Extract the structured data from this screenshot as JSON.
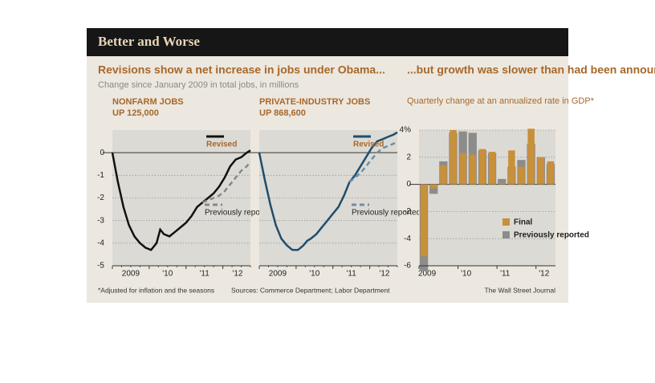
{
  "page": {
    "title": "Better and Worse",
    "headline_left": "Revisions show a net increase in jobs under Obama...",
    "subtitle_left": "Change since January 2009 in total jobs, in millions",
    "footnote": "*Adjusted for inflation and the seasons",
    "source": "Sources: Commerce Department; Labor Department",
    "credit": "The Wall Street Journal"
  },
  "chart_data": [
    {
      "type": "line",
      "title": "NONFARM JOBS",
      "subtitle": "UP 125,000",
      "x": [
        2009.0,
        2009.15,
        2009.3,
        2009.45,
        2009.6,
        2009.75,
        2009.9,
        2010.05,
        2010.2,
        2010.3,
        2010.4,
        2010.55,
        2010.7,
        2010.85,
        2011.0,
        2011.15,
        2011.3,
        2011.45,
        2011.6,
        2011.75,
        2011.9,
        2012.05,
        2012.2,
        2012.35,
        2012.5,
        2012.65,
        2012.75
      ],
      "series": [
        {
          "name": "Revised",
          "color": "#111111",
          "values": [
            0,
            -1.3,
            -2.4,
            -3.2,
            -3.7,
            -4.0,
            -4.2,
            -4.3,
            -4.0,
            -3.4,
            -3.6,
            -3.7,
            -3.5,
            -3.3,
            -3.1,
            -2.8,
            -2.4,
            -2.2,
            -2.0,
            -1.8,
            -1.5,
            -1.1,
            -0.6,
            -0.3,
            -0.2,
            0.0,
            0.1
          ]
        },
        {
          "name": "Previously reported",
          "color": "#888888",
          "dashed": true,
          "values": [
            null,
            null,
            null,
            null,
            null,
            null,
            null,
            null,
            null,
            null,
            null,
            null,
            null,
            null,
            null,
            null,
            null,
            -2.2,
            -2.1,
            -2.0,
            -1.9,
            -1.7,
            -1.4,
            -1.1,
            -0.8,
            -0.6,
            -0.4
          ]
        }
      ],
      "xlim": [
        2009,
        2012.75
      ],
      "xticks": [
        {
          "value": 2009.5,
          "label": "2009"
        },
        {
          "value": 2010.5,
          "label": "'10"
        },
        {
          "value": 2011.5,
          "label": "'11"
        },
        {
          "value": 2012.4,
          "label": "'12"
        }
      ],
      "ylim": [
        -5,
        1
      ],
      "yticks": [
        -5,
        -4,
        -3,
        -2,
        -1,
        0
      ],
      "grid": true
    },
    {
      "type": "line",
      "title": "PRIVATE-INDUSTRY JOBS",
      "subtitle": "UP 868,600",
      "x": [
        2009.0,
        2009.15,
        2009.3,
        2009.45,
        2009.6,
        2009.75,
        2009.9,
        2010.05,
        2010.2,
        2010.3,
        2010.4,
        2010.55,
        2010.7,
        2010.85,
        2011.0,
        2011.15,
        2011.3,
        2011.45,
        2011.6,
        2011.75,
        2011.9,
        2012.05,
        2012.2,
        2012.35,
        2012.5,
        2012.65,
        2012.75
      ],
      "series": [
        {
          "name": "Revised",
          "color": "#1f4e6e",
          "values": [
            0,
            -1.2,
            -2.3,
            -3.2,
            -3.8,
            -4.1,
            -4.3,
            -4.3,
            -4.1,
            -3.9,
            -3.8,
            -3.6,
            -3.3,
            -3.0,
            -2.7,
            -2.4,
            -1.9,
            -1.3,
            -1.0,
            -0.6,
            -0.2,
            0.2,
            0.5,
            0.6,
            0.7,
            0.8,
            0.9
          ]
        },
        {
          "name": "Previously reported",
          "color": "#6f8fa6",
          "dashed": true,
          "values": [
            null,
            null,
            null,
            null,
            null,
            null,
            null,
            null,
            null,
            null,
            null,
            null,
            null,
            null,
            null,
            null,
            null,
            -1.3,
            -1.1,
            -0.9,
            -0.6,
            -0.3,
            0.0,
            0.2,
            0.3,
            0.4,
            0.5
          ]
        }
      ],
      "xlim": [
        2009,
        2012.75
      ],
      "xticks": [
        {
          "value": 2009.5,
          "label": "2009"
        },
        {
          "value": 2010.5,
          "label": "'10"
        },
        {
          "value": 2011.5,
          "label": "'11"
        },
        {
          "value": 2012.4,
          "label": "'12"
        }
      ],
      "ylim": [
        -5,
        1
      ],
      "yticks": [
        -5,
        -4,
        -3,
        -2,
        -1,
        0
      ],
      "grid": true
    },
    {
      "type": "bar",
      "title": "...but growth was slower than had been announced.",
      "subtitle": "Quarterly change at an annualized rate in GDP*",
      "categories": [
        "2009",
        null,
        null,
        null,
        "'10",
        null,
        null,
        null,
        "'11",
        null,
        null,
        null,
        "'12",
        null
      ],
      "series": [
        {
          "name": "Previously reported",
          "color": "#8c8c8c",
          "values": [
            -6.4,
            -0.7,
            1.7,
            3.8,
            3.9,
            3.8,
            2.5,
            2.3,
            0.4,
            1.3,
            1.8,
            3.0,
            2.0,
            1.5
          ]
        },
        {
          "name": "Final",
          "color": "#c8903a",
          "values": [
            -5.3,
            -0.3,
            1.4,
            4.0,
            2.3,
            2.2,
            2.6,
            2.4,
            0.1,
            2.5,
            1.3,
            4.1,
            2.0,
            1.7
          ]
        }
      ],
      "ylim": [
        -6,
        4
      ],
      "yticks": [
        -6,
        -4,
        -2,
        0,
        2,
        {
          "value": 4,
          "label": "4%"
        }
      ],
      "grid": true
    }
  ]
}
